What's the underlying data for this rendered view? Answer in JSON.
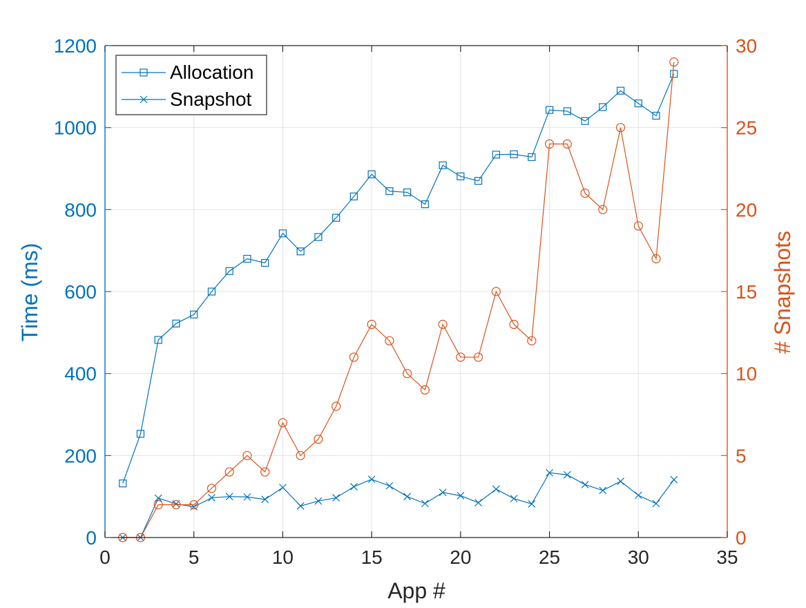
{
  "chart_data": {
    "type": "line",
    "title": "",
    "xlabel": "App #",
    "ylabel_left": "Time (ms)",
    "ylabel_right": "# Snapshots",
    "xlim": [
      0,
      35
    ],
    "ylim_left": [
      0,
      1200
    ],
    "ylim_right": [
      0,
      30
    ],
    "xticks": [
      0,
      5,
      10,
      15,
      20,
      25,
      30,
      35
    ],
    "yticks_left": [
      0,
      200,
      400,
      600,
      800,
      1000,
      1200
    ],
    "yticks_right": [
      0,
      5,
      10,
      15,
      20,
      25,
      30
    ],
    "grid": true,
    "legend_position": "top-left",
    "x": [
      1,
      2,
      3,
      4,
      5,
      6,
      7,
      8,
      9,
      10,
      11,
      12,
      13,
      14,
      15,
      16,
      17,
      18,
      19,
      20,
      21,
      22,
      23,
      24,
      25,
      26,
      27,
      28,
      29,
      30,
      31,
      32
    ],
    "series": [
      {
        "name": "Allocation",
        "axis": "left",
        "marker": "square",
        "color": "#0072BD",
        "values": [
          132,
          253,
          482,
          522,
          544,
          600,
          650,
          680,
          670,
          742,
          698,
          733,
          780,
          832,
          886,
          845,
          842,
          813,
          908,
          881,
          870,
          934,
          935,
          928,
          1043,
          1040,
          1016,
          1050,
          1090,
          1059,
          1029,
          1131
        ]
      },
      {
        "name": "Snapshot",
        "axis": "left",
        "marker": "x",
        "color": "#0072BD",
        "values": [
          0,
          0,
          96,
          82,
          75,
          97,
          100,
          99,
          93,
          122,
          77,
          89,
          97,
          124,
          142,
          126,
          100,
          83,
          110,
          102,
          85,
          118,
          95,
          82,
          158,
          153,
          129,
          115,
          137,
          103,
          83,
          141
        ]
      },
      {
        "axis": "right",
        "marker": "circle",
        "color": "#D95319",
        "values": [
          0,
          0,
          2,
          2,
          2,
          3,
          4,
          5,
          4,
          7,
          5,
          6,
          8,
          11,
          13,
          12,
          10,
          9,
          13,
          11,
          11,
          15,
          13,
          12,
          24,
          24,
          21,
          20,
          25,
          19,
          17,
          29
        ]
      }
    ]
  }
}
